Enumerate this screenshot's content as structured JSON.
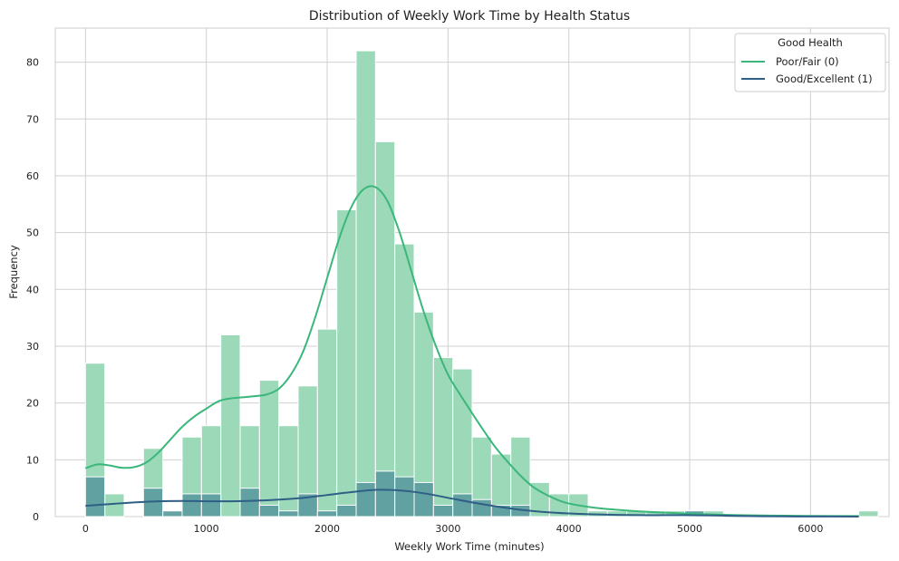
{
  "chart_data": {
    "type": "histogram",
    "title": "Distribution of Weekly Work Time by Health Status",
    "xlabel": "Weekly Work Time (minutes)",
    "ylabel": "Frequency",
    "xlim": [
      -250,
      6650
    ],
    "ylim": [
      0,
      86
    ],
    "xticks": [
      0,
      1000,
      2000,
      3000,
      4000,
      5000,
      6000
    ],
    "yticks": [
      0,
      10,
      20,
      30,
      40,
      50,
      60,
      70,
      80
    ],
    "grid": true,
    "bin_width": 160,
    "bin_start": 0,
    "legend": {
      "title": "Good Health",
      "placement": "top-right"
    },
    "series": [
      {
        "name": "Poor/Fair (0)",
        "color": "#3bb77b",
        "bar_color": "#9bd9b8",
        "counts": [
          27,
          4,
          0,
          12,
          0,
          14,
          16,
          32,
          16,
          24,
          16,
          23,
          33,
          54,
          82,
          66,
          48,
          36,
          28,
          26,
          14,
          11,
          14,
          6,
          4,
          4,
          1,
          1,
          1,
          1,
          1,
          1,
          1,
          0,
          0,
          0,
          0,
          0,
          0,
          0,
          1
        ],
        "kde": [
          [
            0,
            8.5
          ],
          [
            100,
            9.2
          ],
          [
            200,
            9.0
          ],
          [
            300,
            8.6
          ],
          [
            400,
            8.7
          ],
          [
            500,
            9.5
          ],
          [
            600,
            11.2
          ],
          [
            700,
            13.5
          ],
          [
            800,
            15.8
          ],
          [
            900,
            17.6
          ],
          [
            1000,
            19.0
          ],
          [
            1100,
            20.3
          ],
          [
            1200,
            20.8
          ],
          [
            1300,
            21.0
          ],
          [
            1400,
            21.2
          ],
          [
            1500,
            21.5
          ],
          [
            1600,
            22.5
          ],
          [
            1700,
            25.0
          ],
          [
            1800,
            29.0
          ],
          [
            1900,
            35.0
          ],
          [
            2000,
            42.0
          ],
          [
            2100,
            49.0
          ],
          [
            2200,
            54.5
          ],
          [
            2300,
            57.6
          ],
          [
            2400,
            58.0
          ],
          [
            2500,
            55.5
          ],
          [
            2600,
            50.0
          ],
          [
            2700,
            43.0
          ],
          [
            2800,
            36.0
          ],
          [
            2900,
            30.0
          ],
          [
            3000,
            25.0
          ],
          [
            3100,
            21.5
          ],
          [
            3200,
            18.2
          ],
          [
            3300,
            15.0
          ],
          [
            3400,
            12.0
          ],
          [
            3500,
            9.5
          ],
          [
            3600,
            7.2
          ],
          [
            3700,
            5.3
          ],
          [
            3800,
            4.0
          ],
          [
            3900,
            3.0
          ],
          [
            4000,
            2.3
          ],
          [
            4200,
            1.6
          ],
          [
            4400,
            1.2
          ],
          [
            4600,
            0.9
          ],
          [
            4800,
            0.7
          ],
          [
            5000,
            0.5
          ],
          [
            5200,
            0.35
          ],
          [
            5400,
            0.25
          ],
          [
            5600,
            0.2
          ],
          [
            5800,
            0.15
          ],
          [
            6000,
            0.12
          ],
          [
            6200,
            0.1
          ],
          [
            6400,
            0.1
          ]
        ]
      },
      {
        "name": "Good/Excellent (1)",
        "color": "#2f5f86",
        "bar_color": "#5f9ea0",
        "counts": [
          7,
          0,
          0,
          5,
          1,
          4,
          4,
          0,
          5,
          2,
          1,
          4,
          1,
          2,
          6,
          8,
          7,
          6,
          2,
          4,
          3,
          2,
          2,
          0,
          0,
          0,
          0,
          0,
          0,
          0,
          0,
          1
        ],
        "kde": [
          [
            0,
            1.9
          ],
          [
            200,
            2.2
          ],
          [
            400,
            2.5
          ],
          [
            600,
            2.7
          ],
          [
            800,
            2.75
          ],
          [
            1000,
            2.7
          ],
          [
            1200,
            2.7
          ],
          [
            1400,
            2.8
          ],
          [
            1600,
            3.0
          ],
          [
            1800,
            3.3
          ],
          [
            2000,
            3.8
          ],
          [
            2200,
            4.3
          ],
          [
            2400,
            4.7
          ],
          [
            2600,
            4.6
          ],
          [
            2800,
            4.1
          ],
          [
            3000,
            3.3
          ],
          [
            3200,
            2.5
          ],
          [
            3400,
            1.8
          ],
          [
            3600,
            1.2
          ],
          [
            3800,
            0.8
          ],
          [
            4000,
            0.55
          ],
          [
            4200,
            0.4
          ],
          [
            4400,
            0.3
          ],
          [
            4600,
            0.25
          ],
          [
            4800,
            0.25
          ],
          [
            5000,
            0.25
          ],
          [
            5200,
            0.2
          ],
          [
            5400,
            0.12
          ],
          [
            5600,
            0.06
          ],
          [
            5800,
            0.03
          ],
          [
            6000,
            0.02
          ],
          [
            6400,
            0.0
          ]
        ]
      }
    ]
  }
}
